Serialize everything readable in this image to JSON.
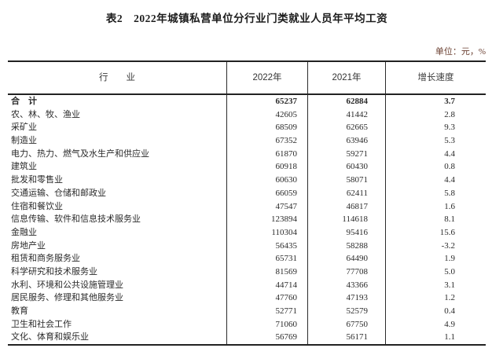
{
  "page": {
    "title": "表2　2022年城镇私营单位分行业门类就业人员年平均工资",
    "unit_note": "单位：元，%"
  },
  "colors": {
    "text": "#2b2b2b",
    "title": "#1c1c1c",
    "unit_note": "#6b4032",
    "border": "#222222"
  },
  "table": {
    "columns": [
      "行　　业",
      "2022年",
      "2021年",
      "增长速度"
    ],
    "rows": [
      {
        "industry": "合　计",
        "y2022": "65237",
        "y2021": "62884",
        "growth": "3.7",
        "bold": true
      },
      {
        "industry": "农、林、牧、渔业",
        "y2022": "42605",
        "y2021": "41442",
        "growth": "2.8",
        "bold": false
      },
      {
        "industry": "采矿业",
        "y2022": "68509",
        "y2021": "62665",
        "growth": "9.3",
        "bold": false
      },
      {
        "industry": "制造业",
        "y2022": "67352",
        "y2021": "63946",
        "growth": "5.3",
        "bold": false
      },
      {
        "industry": "电力、热力、燃气及水生产和供应业",
        "y2022": "61870",
        "y2021": "59271",
        "growth": "4.4",
        "bold": false
      },
      {
        "industry": "建筑业",
        "y2022": "60918",
        "y2021": "60430",
        "growth": "0.8",
        "bold": false
      },
      {
        "industry": "批发和零售业",
        "y2022": "60630",
        "y2021": "58071",
        "growth": "4.4",
        "bold": false
      },
      {
        "industry": "交通运输、仓储和邮政业",
        "y2022": "66059",
        "y2021": "62411",
        "growth": "5.8",
        "bold": false
      },
      {
        "industry": "住宿和餐饮业",
        "y2022": "47547",
        "y2021": "46817",
        "growth": "1.6",
        "bold": false
      },
      {
        "industry": "信息传输、软件和信息技术服务业",
        "y2022": "123894",
        "y2021": "114618",
        "growth": "8.1",
        "bold": false
      },
      {
        "industry": "金融业",
        "y2022": "110304",
        "y2021": "95416",
        "growth": "15.6",
        "bold": false
      },
      {
        "industry": "房地产业",
        "y2022": "56435",
        "y2021": "58288",
        "growth": "-3.2",
        "bold": false
      },
      {
        "industry": "租赁和商务服务业",
        "y2022": "65731",
        "y2021": "64490",
        "growth": "1.9",
        "bold": false
      },
      {
        "industry": "科学研究和技术服务业",
        "y2022": "81569",
        "y2021": "77708",
        "growth": "5.0",
        "bold": false
      },
      {
        "industry": "水利、环境和公共设施管理业",
        "y2022": "44714",
        "y2021": "43366",
        "growth": "3.1",
        "bold": false
      },
      {
        "industry": "居民服务、修理和其他服务业",
        "y2022": "47760",
        "y2021": "47193",
        "growth": "1.2",
        "bold": false
      },
      {
        "industry": "教育",
        "y2022": "52771",
        "y2021": "52579",
        "growth": "0.4",
        "bold": false
      },
      {
        "industry": "卫生和社会工作",
        "y2022": "71060",
        "y2021": "67750",
        "growth": "4.9",
        "bold": false
      },
      {
        "industry": "文化、体育和娱乐业",
        "y2022": "56769",
        "y2021": "56171",
        "growth": "1.1",
        "bold": false
      }
    ]
  },
  "chart_data": {
    "type": "table",
    "title": "表2　2022年城镇私营单位分行业门类就业人员年平均工资",
    "unit": "单位：元，%",
    "columns": [
      "行业",
      "2022年",
      "2021年",
      "增长速度"
    ],
    "categories": [
      "合计",
      "农、林、牧、渔业",
      "采矿业",
      "制造业",
      "电力、热力、燃气及水生产和供应业",
      "建筑业",
      "批发和零售业",
      "交通运输、仓储和邮政业",
      "住宿和餐饮业",
      "信息传输、软件和信息技术服务业",
      "金融业",
      "房地产业",
      "租赁和商务服务业",
      "科学研究和技术服务业",
      "水利、环境和公共设施管理业",
      "居民服务、修理和其他服务业",
      "教育",
      "卫生和社会工作",
      "文化、体育和娱乐业"
    ],
    "series": [
      {
        "name": "2022年",
        "values": [
          65237,
          42605,
          68509,
          67352,
          61870,
          60918,
          60630,
          66059,
          47547,
          123894,
          110304,
          56435,
          65731,
          81569,
          44714,
          47760,
          52771,
          71060,
          56769
        ]
      },
      {
        "name": "2021年",
        "values": [
          62884,
          41442,
          62665,
          63946,
          59271,
          60430,
          58071,
          62411,
          46817,
          114618,
          95416,
          58288,
          64490,
          77708,
          43366,
          47193,
          52579,
          67750,
          56171
        ]
      },
      {
        "name": "增长速度",
        "values": [
          3.7,
          2.8,
          9.3,
          5.3,
          4.4,
          0.8,
          4.4,
          5.8,
          1.6,
          8.1,
          15.6,
          -3.2,
          1.9,
          5.0,
          3.1,
          1.2,
          0.4,
          4.9,
          1.1
        ]
      }
    ]
  }
}
